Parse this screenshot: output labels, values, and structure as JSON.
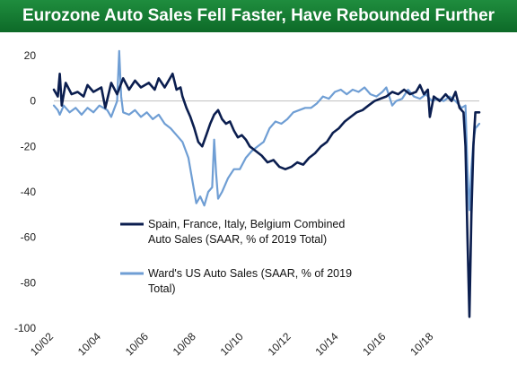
{
  "header": {
    "title": "Eurozone Auto Sales Fell Faster, Have Rebounded Further"
  },
  "colors": {
    "accent": "#16803a",
    "eu_series": "#0b1e4f",
    "us_series": "#6f9ed4"
  },
  "chart_data": {
    "type": "line",
    "title": "Eurozone Auto Sales Fell Faster, Have Rebounded Further",
    "xlabel": "",
    "ylabel": "",
    "ylim": [
      -100,
      20
    ],
    "yticks": [
      20,
      0,
      -20,
      -40,
      -60,
      -80,
      -100
    ],
    "xlim": [
      "2002-10",
      "2020-09"
    ],
    "xticks": [
      "10/02",
      "10/04",
      "10/06",
      "10/08",
      "10/10",
      "10/12",
      "10/14",
      "10/16",
      "10/18"
    ],
    "grid": false,
    "legend_position": "lower-center",
    "series": [
      {
        "name": "Spain, France, Italy, Belgium Combined Auto Sales (SAAR, % of 2019 Total)",
        "color": "#0b1e4f",
        "points": [
          [
            "2002-10",
            5
          ],
          [
            "2002-12",
            2
          ],
          [
            "2003-01",
            12
          ],
          [
            "2003-02",
            -2
          ],
          [
            "2003-04",
            8
          ],
          [
            "2003-07",
            3
          ],
          [
            "2003-10",
            4
          ],
          [
            "2004-01",
            2
          ],
          [
            "2004-03",
            7
          ],
          [
            "2004-06",
            4
          ],
          [
            "2004-10",
            6
          ],
          [
            "2004-12",
            -3
          ],
          [
            "2005-03",
            8
          ],
          [
            "2005-06",
            3
          ],
          [
            "2005-09",
            10
          ],
          [
            "2005-12",
            5
          ],
          [
            "2006-03",
            9
          ],
          [
            "2006-06",
            6
          ],
          [
            "2006-10",
            8
          ],
          [
            "2007-01",
            5
          ],
          [
            "2007-03",
            10
          ],
          [
            "2007-06",
            6
          ],
          [
            "2007-08",
            9
          ],
          [
            "2007-10",
            12
          ],
          [
            "2007-12",
            5
          ],
          [
            "2008-02",
            6
          ],
          [
            "2008-03",
            2
          ],
          [
            "2008-05",
            -3
          ],
          [
            "2008-07",
            -7
          ],
          [
            "2008-09",
            -12
          ],
          [
            "2008-11",
            -18
          ],
          [
            "2009-01",
            -20
          ],
          [
            "2009-03",
            -15
          ],
          [
            "2009-05",
            -10
          ],
          [
            "2009-07",
            -6
          ],
          [
            "2009-09",
            -4
          ],
          [
            "2009-11",
            -8
          ],
          [
            "2010-01",
            -10
          ],
          [
            "2010-03",
            -9
          ],
          [
            "2010-05",
            -13
          ],
          [
            "2010-07",
            -16
          ],
          [
            "2010-09",
            -15
          ],
          [
            "2010-11",
            -17
          ],
          [
            "2011-01",
            -20
          ],
          [
            "2011-04",
            -22
          ],
          [
            "2011-07",
            -24
          ],
          [
            "2011-10",
            -27
          ],
          [
            "2012-01",
            -26
          ],
          [
            "2012-04",
            -29
          ],
          [
            "2012-07",
            -30
          ],
          [
            "2012-10",
            -29
          ],
          [
            "2013-01",
            -27
          ],
          [
            "2013-04",
            -28
          ],
          [
            "2013-07",
            -25
          ],
          [
            "2013-10",
            -23
          ],
          [
            "2014-01",
            -20
          ],
          [
            "2014-04",
            -18
          ],
          [
            "2014-07",
            -14
          ],
          [
            "2014-10",
            -12
          ],
          [
            "2015-01",
            -9
          ],
          [
            "2015-04",
            -7
          ],
          [
            "2015-07",
            -5
          ],
          [
            "2015-10",
            -4
          ],
          [
            "2016-01",
            -2
          ],
          [
            "2016-04",
            0
          ],
          [
            "2016-07",
            1
          ],
          [
            "2016-10",
            2
          ],
          [
            "2017-01",
            4
          ],
          [
            "2017-04",
            3
          ],
          [
            "2017-07",
            5
          ],
          [
            "2017-10",
            3
          ],
          [
            "2018-01",
            4
          ],
          [
            "2018-03",
            7
          ],
          [
            "2018-05",
            3
          ],
          [
            "2018-07",
            5
          ],
          [
            "2018-08",
            -7
          ],
          [
            "2018-10",
            2
          ],
          [
            "2019-01",
            0
          ],
          [
            "2019-04",
            3
          ],
          [
            "2019-07",
            0
          ],
          [
            "2019-09",
            4
          ],
          [
            "2019-11",
            -3
          ],
          [
            "2020-01",
            -5
          ],
          [
            "2020-02",
            -20
          ],
          [
            "2020-03",
            -60
          ],
          [
            "2020-04",
            -95
          ],
          [
            "2020-05",
            -50
          ],
          [
            "2020-06",
            -20
          ],
          [
            "2020-07",
            -5
          ],
          [
            "2020-09",
            -5
          ]
        ]
      },
      {
        "name": "Ward's US Auto Sales (SAAR, % of 2019 Total)",
        "color": "#6f9ed4",
        "points": [
          [
            "2002-10",
            -2
          ],
          [
            "2002-12",
            -4
          ],
          [
            "2003-01",
            -6
          ],
          [
            "2003-03",
            -2
          ],
          [
            "2003-06",
            -5
          ],
          [
            "2003-09",
            -3
          ],
          [
            "2003-12",
            -6
          ],
          [
            "2004-03",
            -3
          ],
          [
            "2004-06",
            -5
          ],
          [
            "2004-09",
            -2
          ],
          [
            "2005-01",
            -4
          ],
          [
            "2005-03",
            -7
          ],
          [
            "2005-06",
            0
          ],
          [
            "2005-07",
            22
          ],
          [
            "2005-08",
            2
          ],
          [
            "2005-09",
            -5
          ],
          [
            "2005-12",
            -6
          ],
          [
            "2006-03",
            -4
          ],
          [
            "2006-06",
            -7
          ],
          [
            "2006-09",
            -5
          ],
          [
            "2006-12",
            -8
          ],
          [
            "2007-03",
            -6
          ],
          [
            "2007-06",
            -10
          ],
          [
            "2007-09",
            -12
          ],
          [
            "2007-12",
            -15
          ],
          [
            "2008-03",
            -18
          ],
          [
            "2008-06",
            -25
          ],
          [
            "2008-08",
            -35
          ],
          [
            "2008-10",
            -45
          ],
          [
            "2008-12",
            -42
          ],
          [
            "2009-02",
            -46
          ],
          [
            "2009-04",
            -40
          ],
          [
            "2009-06",
            -38
          ],
          [
            "2009-07",
            -17
          ],
          [
            "2009-08",
            -32
          ],
          [
            "2009-09",
            -43
          ],
          [
            "2009-11",
            -40
          ],
          [
            "2010-02",
            -34
          ],
          [
            "2010-05",
            -30
          ],
          [
            "2010-08",
            -30
          ],
          [
            "2010-11",
            -25
          ],
          [
            "2011-02",
            -22
          ],
          [
            "2011-05",
            -20
          ],
          [
            "2011-08",
            -18
          ],
          [
            "2011-11",
            -12
          ],
          [
            "2012-02",
            -9
          ],
          [
            "2012-05",
            -10
          ],
          [
            "2012-08",
            -8
          ],
          [
            "2012-11",
            -5
          ],
          [
            "2013-02",
            -4
          ],
          [
            "2013-05",
            -3
          ],
          [
            "2013-08",
            -3
          ],
          [
            "2013-11",
            -1
          ],
          [
            "2014-02",
            2
          ],
          [
            "2014-05",
            1
          ],
          [
            "2014-08",
            4
          ],
          [
            "2014-11",
            5
          ],
          [
            "2015-02",
            3
          ],
          [
            "2015-05",
            5
          ],
          [
            "2015-08",
            4
          ],
          [
            "2015-11",
            6
          ],
          [
            "2016-02",
            3
          ],
          [
            "2016-05",
            2
          ],
          [
            "2016-08",
            4
          ],
          [
            "2016-10",
            6
          ],
          [
            "2017-01",
            -2
          ],
          [
            "2017-03",
            0
          ],
          [
            "2017-06",
            1
          ],
          [
            "2017-09",
            5
          ],
          [
            "2017-12",
            2
          ],
          [
            "2018-03",
            1
          ],
          [
            "2018-06",
            3
          ],
          [
            "2018-09",
            0
          ],
          [
            "2018-12",
            1
          ],
          [
            "2019-03",
            0
          ],
          [
            "2019-06",
            2
          ],
          [
            "2019-09",
            0
          ],
          [
            "2019-12",
            -3
          ],
          [
            "2020-02",
            -2
          ],
          [
            "2020-03",
            -30
          ],
          [
            "2020-04",
            -48
          ],
          [
            "2020-05",
            -30
          ],
          [
            "2020-06",
            -18
          ],
          [
            "2020-07",
            -12
          ],
          [
            "2020-09",
            -10
          ]
        ]
      }
    ]
  }
}
